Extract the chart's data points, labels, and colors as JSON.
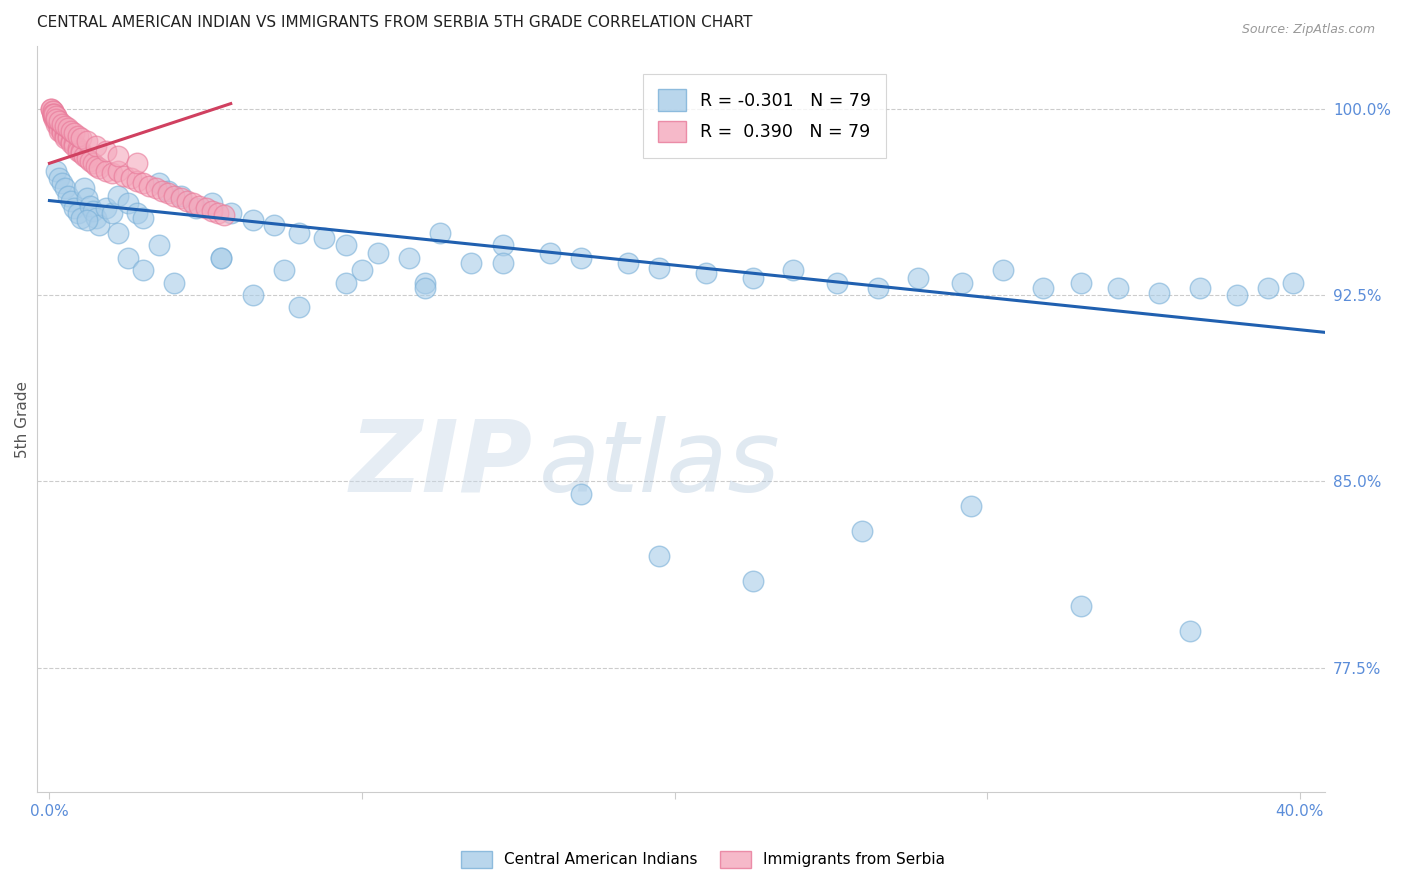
{
  "title": "CENTRAL AMERICAN INDIAN VS IMMIGRANTS FROM SERBIA 5TH GRADE CORRELATION CHART",
  "source": "Source: ZipAtlas.com",
  "ylabel": "5th Grade",
  "blue_label": "Central American Indians",
  "pink_label": "Immigrants from Serbia",
  "blue_R": -0.301,
  "blue_N": 79,
  "pink_R": 0.39,
  "pink_N": 79,
  "blue_color": "#a8cce8",
  "pink_color": "#f4a8bc",
  "blue_edge_color": "#7ab0d8",
  "pink_edge_color": "#e87898",
  "blue_line_color": "#2060b0",
  "pink_line_color": "#d04060",
  "watermark_zip": "ZIP",
  "watermark_atlas": "atlas",
  "title_fontsize": 11,
  "axis_tick_color": "#5b8dd9",
  "grid_color": "#cccccc",
  "ymin": 0.725,
  "ymax": 1.025,
  "xmin": -0.004,
  "xmax": 0.408,
  "ytick_positions": [
    0.775,
    0.85,
    0.925,
    1.0
  ],
  "ytick_labels": [
    "77.5%",
    "85.0%",
    "92.5%",
    "100.0%"
  ],
  "xtick_positions": [
    0.0,
    0.1,
    0.2,
    0.3,
    0.4
  ],
  "xtick_labels": [
    "0.0%",
    "",
    "",
    "",
    "40.0%"
  ],
  "blue_x": [
    0.002,
    0.003,
    0.004,
    0.005,
    0.006,
    0.007,
    0.008,
    0.009,
    0.01,
    0.011,
    0.012,
    0.013,
    0.014,
    0.015,
    0.016,
    0.018,
    0.02,
    0.022,
    0.025,
    0.028,
    0.03,
    0.035,
    0.038,
    0.042,
    0.047,
    0.052,
    0.058,
    0.065,
    0.072,
    0.08,
    0.088,
    0.095,
    0.105,
    0.115,
    0.125,
    0.135,
    0.145,
    0.16,
    0.17,
    0.185,
    0.195,
    0.21,
    0.225,
    0.238,
    0.252,
    0.265,
    0.278,
    0.292,
    0.305,
    0.318,
    0.33,
    0.342,
    0.355,
    0.368,
    0.38,
    0.39,
    0.398,
    0.025,
    0.03,
    0.04,
    0.055,
    0.065,
    0.08,
    0.1,
    0.12,
    0.012,
    0.022,
    0.035,
    0.055,
    0.075,
    0.095,
    0.12,
    0.145,
    0.17,
    0.195,
    0.225,
    0.26,
    0.295,
    0.33,
    0.365
  ],
  "blue_y": [
    0.975,
    0.972,
    0.97,
    0.968,
    0.965,
    0.963,
    0.96,
    0.958,
    0.956,
    0.968,
    0.964,
    0.961,
    0.959,
    0.956,
    0.953,
    0.96,
    0.958,
    0.965,
    0.962,
    0.958,
    0.956,
    0.97,
    0.967,
    0.965,
    0.96,
    0.962,
    0.958,
    0.955,
    0.953,
    0.95,
    0.948,
    0.945,
    0.942,
    0.94,
    0.95,
    0.938,
    0.945,
    0.942,
    0.94,
    0.938,
    0.936,
    0.934,
    0.932,
    0.935,
    0.93,
    0.928,
    0.932,
    0.93,
    0.935,
    0.928,
    0.93,
    0.928,
    0.926,
    0.928,
    0.925,
    0.928,
    0.93,
    0.94,
    0.935,
    0.93,
    0.94,
    0.925,
    0.92,
    0.935,
    0.93,
    0.955,
    0.95,
    0.945,
    0.94,
    0.935,
    0.93,
    0.928,
    0.938,
    0.845,
    0.82,
    0.81,
    0.83,
    0.84,
    0.8,
    0.79
  ],
  "pink_x": [
    0.0005,
    0.0008,
    0.001,
    0.001,
    0.001,
    0.001,
    0.001,
    0.0015,
    0.0015,
    0.002,
    0.002,
    0.002,
    0.002,
    0.0025,
    0.003,
    0.003,
    0.003,
    0.003,
    0.004,
    0.004,
    0.004,
    0.005,
    0.005,
    0.005,
    0.006,
    0.006,
    0.007,
    0.007,
    0.008,
    0.008,
    0.009,
    0.009,
    0.01,
    0.01,
    0.011,
    0.012,
    0.013,
    0.014,
    0.015,
    0.016,
    0.018,
    0.02,
    0.022,
    0.024,
    0.026,
    0.028,
    0.03,
    0.032,
    0.034,
    0.036,
    0.038,
    0.04,
    0.042,
    0.044,
    0.046,
    0.048,
    0.05,
    0.052,
    0.054,
    0.056,
    0.0005,
    0.001,
    0.001,
    0.0015,
    0.002,
    0.002,
    0.003,
    0.004,
    0.005,
    0.006,
    0.007,
    0.008,
    0.009,
    0.01,
    0.012,
    0.015,
    0.018,
    0.022,
    0.028
  ],
  "pink_y": [
    1.0,
    0.999,
    0.999,
    0.998,
    0.998,
    0.997,
    0.997,
    0.998,
    0.996,
    0.997,
    0.996,
    0.995,
    0.994,
    0.995,
    0.994,
    0.993,
    0.992,
    0.991,
    0.992,
    0.991,
    0.99,
    0.99,
    0.989,
    0.988,
    0.989,
    0.988,
    0.987,
    0.986,
    0.986,
    0.985,
    0.984,
    0.983,
    0.983,
    0.982,
    0.981,
    0.98,
    0.979,
    0.978,
    0.977,
    0.976,
    0.975,
    0.974,
    0.975,
    0.973,
    0.972,
    0.971,
    0.97,
    0.969,
    0.968,
    0.967,
    0.966,
    0.965,
    0.964,
    0.963,
    0.962,
    0.961,
    0.96,
    0.959,
    0.958,
    0.957,
    1.0,
    0.999,
    0.998,
    0.998,
    0.997,
    0.996,
    0.995,
    0.994,
    0.993,
    0.992,
    0.991,
    0.99,
    0.989,
    0.988,
    0.987,
    0.985,
    0.983,
    0.981,
    0.978
  ],
  "blue_line_x": [
    0.0,
    0.408
  ],
  "blue_line_y": [
    0.963,
    0.91
  ],
  "pink_line_x": [
    0.0,
    0.058
  ],
  "pink_line_y": [
    0.978,
    1.002
  ]
}
